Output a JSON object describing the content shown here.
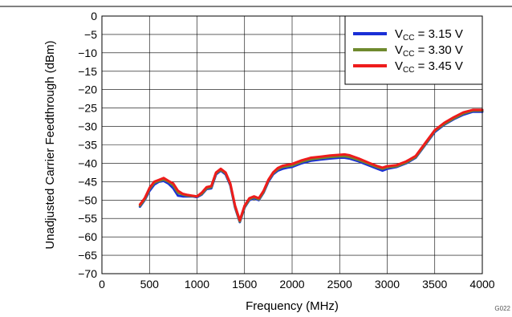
{
  "figure_id": "G022",
  "chart_data": {
    "type": "line",
    "title": "",
    "xlabel": "Frequency (MHz)",
    "ylabel": "Unadjusted Carrier Feedthrough (dBm)",
    "xlim": [
      0,
      4000
    ],
    "ylim": [
      -70,
      0
    ],
    "x_ticks": [
      0,
      500,
      1000,
      1500,
      2000,
      2500,
      3000,
      3500,
      4000
    ],
    "y_ticks": [
      0,
      -5,
      -10,
      -15,
      -20,
      -25,
      -30,
      -35,
      -40,
      -45,
      -50,
      -55,
      -60,
      -65,
      -70
    ],
    "x_tick_labels": [
      "0",
      "500",
      "1000",
      "1500",
      "2000",
      "2500",
      "3000",
      "3500",
      "4000"
    ],
    "y_tick_labels": [
      "0",
      "−5",
      "−10",
      "−15",
      "−20",
      "−25",
      "−30",
      "−35",
      "−40",
      "−45",
      "−50",
      "−55",
      "−60",
      "−65",
      "−70"
    ],
    "grid": true,
    "legend_position": "top-right",
    "series": [
      {
        "name": "V_CC = 3.15 V",
        "legend_main": "V",
        "legend_sub": "CC",
        "legend_value": " = 3.15 V",
        "color": "#1a2fd6",
        "x": [
          400,
          450,
          500,
          550,
          600,
          650,
          700,
          750,
          800,
          850,
          900,
          950,
          1000,
          1050,
          1100,
          1150,
          1200,
          1250,
          1300,
          1350,
          1400,
          1450,
          1500,
          1550,
          1600,
          1650,
          1700,
          1750,
          1800,
          1850,
          1900,
          1950,
          2000,
          2100,
          2200,
          2300,
          2400,
          2500,
          2550,
          2600,
          2700,
          2800,
          2900,
          2950,
          3000,
          3100,
          3200,
          3300,
          3400,
          3500,
          3600,
          3700,
          3800,
          3900,
          4000
        ],
        "y": [
          -51.8,
          -50,
          -47.5,
          -45.8,
          -45,
          -44.8,
          -45.5,
          -46.8,
          -48.8,
          -49,
          -49,
          -49,
          -49.2,
          -48.5,
          -47,
          -46.8,
          -43,
          -42,
          -43,
          -46,
          -52,
          -56,
          -52,
          -50,
          -49.5,
          -50,
          -48,
          -45,
          -43,
          -42,
          -41.5,
          -41.2,
          -41,
          -40,
          -39.3,
          -39,
          -38.7,
          -38.5,
          -38.5,
          -38.7,
          -39.5,
          -40.5,
          -41.5,
          -42,
          -41.5,
          -41,
          -40,
          -38.5,
          -35,
          -31.5,
          -29.5,
          -28,
          -26.8,
          -26,
          -26
        ]
      },
      {
        "name": "V_CC = 3.30 V",
        "legend_main": "V",
        "legend_sub": "CC",
        "legend_value": " = 3.30 V",
        "color": "#6f8a2e",
        "x": [
          400,
          450,
          500,
          550,
          600,
          650,
          700,
          750,
          800,
          850,
          900,
          950,
          1000,
          1050,
          1100,
          1150,
          1200,
          1250,
          1300,
          1350,
          1400,
          1450,
          1500,
          1550,
          1600,
          1650,
          1700,
          1750,
          1800,
          1850,
          1900,
          1950,
          2000,
          2100,
          2200,
          2300,
          2400,
          2500,
          2550,
          2600,
          2700,
          2800,
          2900,
          2950,
          3000,
          3100,
          3200,
          3300,
          3400,
          3500,
          3600,
          3700,
          3800,
          3900,
          4000
        ],
        "y": [
          -51.5,
          -49.8,
          -47,
          -45.3,
          -44.8,
          -44.4,
          -45,
          -46,
          -48,
          -48.5,
          -48.8,
          -48.9,
          -49,
          -48.3,
          -46.8,
          -46.5,
          -42.7,
          -41.8,
          -42.7,
          -45.7,
          -51.8,
          -55.8,
          -51.8,
          -49.8,
          -49.2,
          -49.8,
          -47.8,
          -44.7,
          -42.7,
          -41.6,
          -41,
          -40.8,
          -40.6,
          -39.6,
          -38.9,
          -38.6,
          -38.3,
          -38.1,
          -38.1,
          -38.3,
          -39.1,
          -40.1,
          -41.1,
          -41.5,
          -41.1,
          -40.8,
          -39.8,
          -38.3,
          -34.8,
          -31.2,
          -29.3,
          -27.8,
          -26.5,
          -25.7,
          -25.7
        ]
      },
      {
        "name": "V_CC = 3.45 V",
        "legend_main": "V",
        "legend_sub": "CC",
        "legend_value": " = 3.45 V",
        "color": "#ee1c1c",
        "x": [
          400,
          450,
          500,
          550,
          600,
          650,
          700,
          750,
          800,
          850,
          900,
          950,
          1000,
          1050,
          1100,
          1150,
          1200,
          1250,
          1300,
          1350,
          1400,
          1450,
          1500,
          1550,
          1600,
          1650,
          1700,
          1750,
          1800,
          1850,
          1900,
          1950,
          2000,
          2100,
          2200,
          2300,
          2400,
          2500,
          2550,
          2600,
          2700,
          2800,
          2900,
          2950,
          3000,
          3100,
          3200,
          3300,
          3400,
          3500,
          3600,
          3700,
          3800,
          3900,
          4000
        ],
        "y": [
          -51.2,
          -49.5,
          -46.7,
          -45,
          -44.5,
          -44,
          -44.8,
          -45.5,
          -47.5,
          -48.3,
          -48.6,
          -48.8,
          -49,
          -48,
          -46.5,
          -46.2,
          -42.5,
          -41.5,
          -42.5,
          -45.5,
          -51.5,
          -55.5,
          -51.5,
          -49.5,
          -49,
          -49.5,
          -47.5,
          -44.5,
          -42.5,
          -41.3,
          -40.7,
          -40.4,
          -40.2,
          -39.2,
          -38.5,
          -38.2,
          -37.9,
          -37.7,
          -37.6,
          -37.8,
          -38.7,
          -39.8,
          -40.8,
          -41.2,
          -40.8,
          -40.5,
          -39.5,
          -38,
          -34.5,
          -31,
          -29,
          -27.5,
          -26.2,
          -25.5,
          -25.5
        ]
      }
    ]
  }
}
